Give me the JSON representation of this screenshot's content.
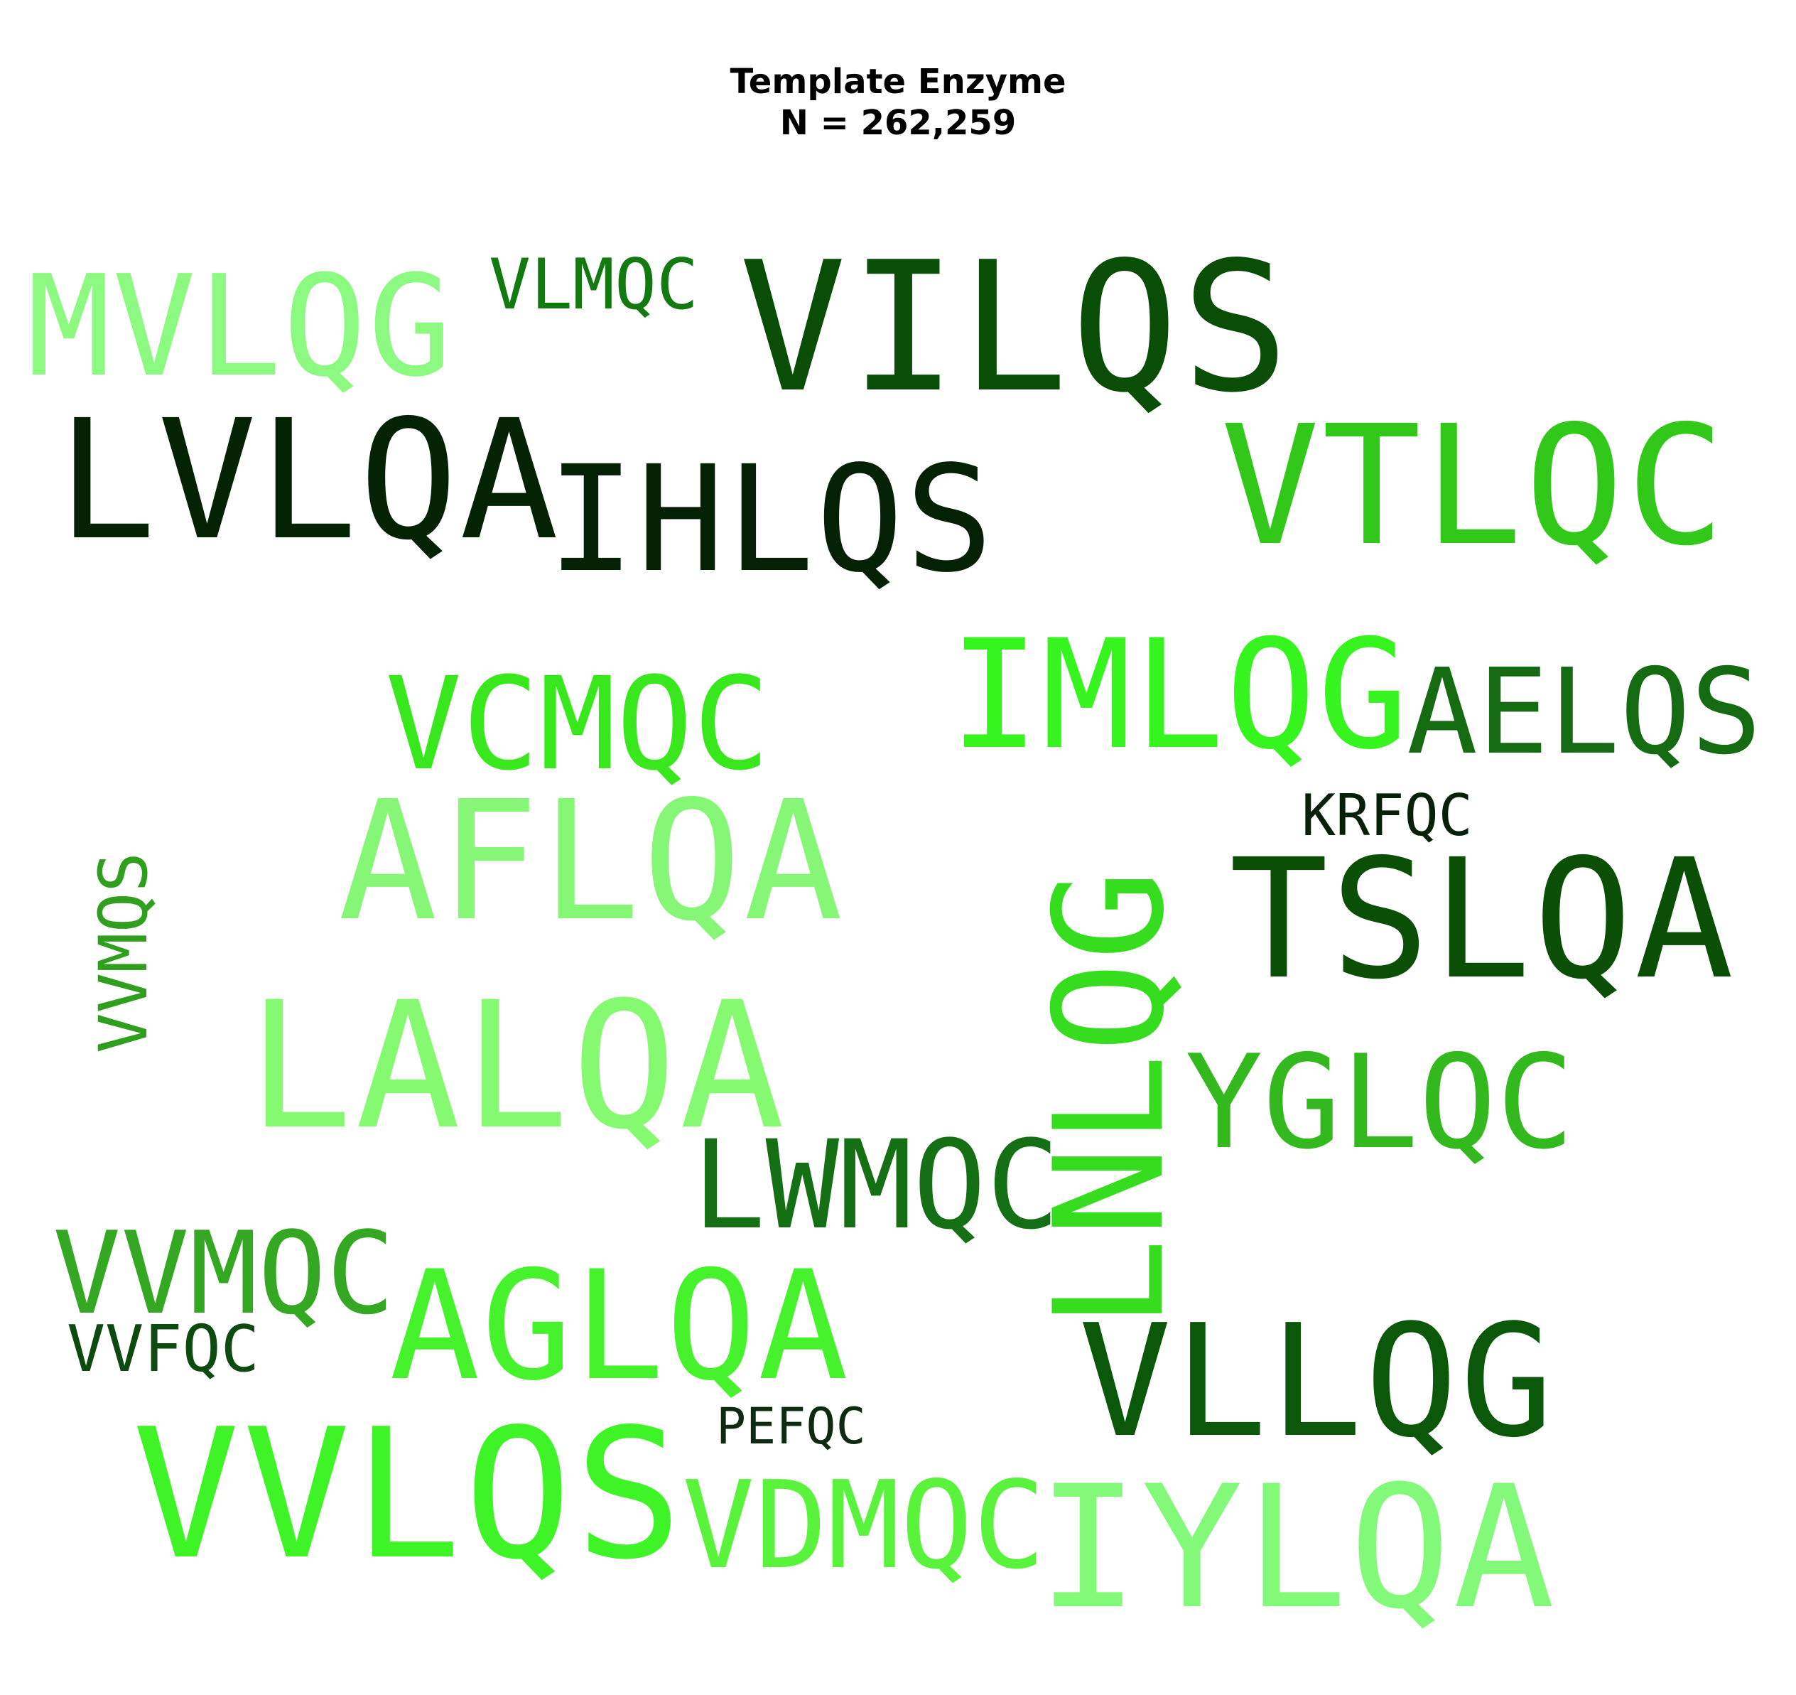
{
  "title": {
    "line1": "Template Enzyme",
    "line2": "N = 262,259"
  },
  "words": [
    {
      "text": "VILQS",
      "color": "#0a4d06",
      "orientation": "horizontal"
    },
    {
      "text": "LVLQA",
      "color": "#042204",
      "orientation": "horizontal"
    },
    {
      "text": "IHLQS",
      "color": "#052105",
      "orientation": "horizontal"
    },
    {
      "text": "VTLQC",
      "color": "#32c81a",
      "orientation": "horizontal"
    },
    {
      "text": "MVLQG",
      "color": "#8cf980",
      "orientation": "horizontal"
    },
    {
      "text": "VLMQC",
      "color": "#137a10",
      "orientation": "horizontal"
    },
    {
      "text": "IMLQG",
      "color": "#36f41e",
      "orientation": "horizontal"
    },
    {
      "text": "AELQS",
      "color": "#156b12",
      "orientation": "horizontal"
    },
    {
      "text": "VCMQC",
      "color": "#39e81c",
      "orientation": "horizontal"
    },
    {
      "text": "AFLQA",
      "color": "#85f675",
      "orientation": "horizontal"
    },
    {
      "text": "KRFQC",
      "color": "#072008",
      "orientation": "horizontal"
    },
    {
      "text": "TSLQA",
      "color": "#0b4f07",
      "orientation": "horizontal"
    },
    {
      "text": "LNLQG",
      "color": "#36dd1e",
      "orientation": "vertical"
    },
    {
      "text": "VVMQS",
      "color": "#2f9f1d",
      "orientation": "vertical"
    },
    {
      "text": "LALQA",
      "color": "#85f96f",
      "orientation": "horizontal"
    },
    {
      "text": "YGLQC",
      "color": "#33b81e",
      "orientation": "horizontal"
    },
    {
      "text": "LWMQC",
      "color": "#157015",
      "orientation": "horizontal"
    },
    {
      "text": "VVMQC",
      "color": "#34a823",
      "orientation": "horizontal"
    },
    {
      "text": "VVFQC",
      "color": "#0c4a10",
      "orientation": "horizontal"
    },
    {
      "text": "AGLQA",
      "color": "#46f22c",
      "orientation": "horizontal"
    },
    {
      "text": "VLLQG",
      "color": "#0c580a",
      "orientation": "horizontal"
    },
    {
      "text": "PEFQC",
      "color": "#0e2a10",
      "orientation": "horizontal"
    },
    {
      "text": "VVLQS",
      "color": "#3ef326",
      "orientation": "horizontal"
    },
    {
      "text": "VDMQC",
      "color": "#5af33c",
      "orientation": "horizontal"
    },
    {
      "text": "IYLQA",
      "color": "#82f978",
      "orientation": "horizontal"
    }
  ]
}
